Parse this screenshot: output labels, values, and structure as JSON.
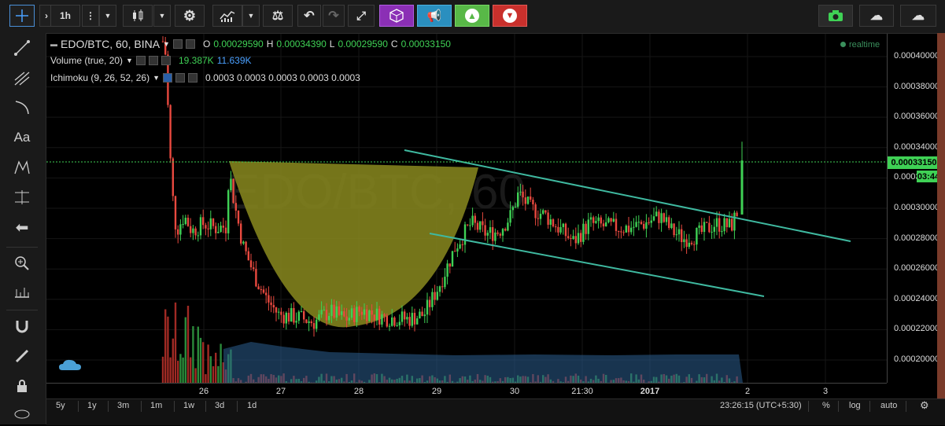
{
  "toolbar": {
    "interval_label": "1h",
    "buttons": [
      "crosshair",
      "interval",
      "bar-style",
      "chart-type",
      "settings",
      "indicators",
      "compare",
      "undo",
      "redo",
      "fullscreen",
      "cube",
      "megaphone",
      "chevron-up",
      "chevron-down",
      "camera",
      "cloud-download",
      "cloud-upload"
    ]
  },
  "legend": {
    "symbol": "EDO/BTC, 60, BINA",
    "o_label": "O",
    "o_value": "0.00029590",
    "h_label": "H",
    "h_value": "0.00034390",
    "l_label": "L",
    "l_value": "0.00029590",
    "c_label": "C",
    "c_value": "0.00033150",
    "volume_label": "Volume (true, 20)",
    "volume_v1": "19.387K",
    "volume_v2": "11.639K",
    "ichimoku_label": "Ichimoku (9, 26, 52, 26)",
    "ichimoku_values": "0.0003  0.0003  0.0003  0.0003  0.0003",
    "realtime": "realtime"
  },
  "price_axis": {
    "ticks": [
      "0.00040000",
      "0.00038000",
      "0.00036000",
      "0.00034000",
      "0.00032000",
      "0.00030000",
      "0.00028000",
      "0.00026000",
      "0.00024000",
      "0.00022000",
      "0.00020000"
    ],
    "current_price": "0.00033150",
    "countdown": "03:44"
  },
  "time_axis": {
    "ticks": [
      "26",
      "27",
      "28",
      "29",
      "30",
      "21:30",
      "2017",
      "2",
      "3"
    ]
  },
  "bottom": {
    "ranges": [
      "5y",
      "1y",
      "3m",
      "1m",
      "1w",
      "3d",
      "1d"
    ],
    "clock": "23:26:15 (UTC+5:30)",
    "percent": "%",
    "log": "log",
    "auto": "auto"
  },
  "watermark": "EDO/BTC, 60",
  "colors": {
    "up": "#3fd155",
    "down": "#e8493f",
    "channel": "#3fb9a0",
    "cup": "#8a8a1e",
    "volume_area": "#2b5e8f"
  },
  "chart_data": {
    "type": "candlestick",
    "ylim": [
      0.000185,
      0.000415
    ],
    "y_ticks": [
      0.0002,
      0.00022,
      0.00024,
      0.00026,
      0.00028,
      0.0003,
      0.00032,
      0.00034,
      0.00036,
      0.00038,
      0.0004
    ],
    "last_close": 0.0003315,
    "series": [
      {
        "name": "EDO/BTC, 60, BINA"
      }
    ]
  }
}
